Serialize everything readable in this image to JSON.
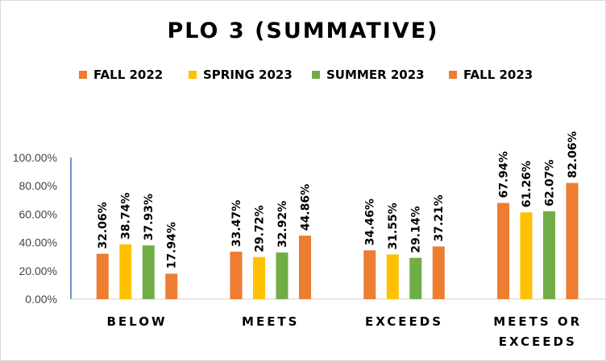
{
  "chart_data": {
    "type": "bar",
    "title": "PLO 3 (SUMMATIVE)",
    "categories": [
      "BELOW",
      "MEETS",
      "EXCEEDS",
      "MEETS OR EXCEEDS"
    ],
    "series": [
      {
        "name": "FALL 2022",
        "color": "#ED7D31",
        "values": [
          32.06,
          33.47,
          34.46,
          67.94
        ],
        "labels": [
          "32.06%",
          "33.47%",
          "34.46%",
          "67.94%"
        ]
      },
      {
        "name": "SPRING 2023",
        "color": "#FFC000",
        "values": [
          38.74,
          29.72,
          31.55,
          61.26
        ],
        "labels": [
          "38.74%",
          "29.72%",
          "31.55%",
          "61.26%"
        ]
      },
      {
        "name": "SUMMER 2023",
        "color": "#70AD47",
        "values": [
          37.93,
          32.92,
          29.14,
          62.07
        ],
        "labels": [
          "37.93%",
          "32.92%",
          "29.14%",
          "62.07%"
        ]
      },
      {
        "name": "FALL 2023",
        "color": "#ED7D31",
        "values": [
          17.94,
          44.86,
          37.21,
          82.06
        ],
        "labels": [
          "17.94%",
          "44.86%",
          "37.21%",
          "82.06%"
        ]
      }
    ],
    "ylim": [
      0,
      100
    ],
    "yticks": [
      "0.00%",
      "20.00%",
      "40.00%",
      "60.00%",
      "80.00%",
      "100.00%"
    ],
    "legend_position": "top",
    "grid": false
  }
}
